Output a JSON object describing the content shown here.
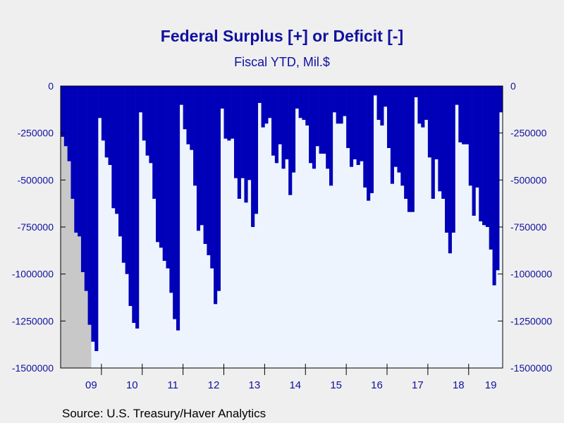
{
  "chart_data": {
    "type": "bar",
    "title": "Federal Surplus [+] or Deficit [-]",
    "subtitle": "Fiscal YTD, Mil.$",
    "source": "Source:  U.S. Treasury/Haver Analytics",
    "frequency": "monthly",
    "x_start": "2008-10",
    "x_tick_labels": [
      "09",
      "10",
      "11",
      "12",
      "13",
      "14",
      "15",
      "16",
      "17",
      "18",
      "19"
    ],
    "y_tick_labels": [
      "0",
      "-250000",
      "-500000",
      "-750000",
      "-1000000",
      "-1250000",
      "-1500000"
    ],
    "ylim": [
      -1500000,
      0
    ],
    "y_ticks": [
      0,
      -250000,
      -500000,
      -750000,
      -1000000,
      -1250000,
      -1500000
    ],
    "dual_y_axis": true,
    "recession_shading": {
      "start": "2008-10",
      "end": "2009-06"
    },
    "colors": {
      "bars": "#0000b8",
      "plot_background": "#eef4fd",
      "recession": "#c8c8c8",
      "page_background": "#efefef",
      "text": "#1010a0"
    },
    "values": [
      -270000,
      -320000,
      -400000,
      -600000,
      -780000,
      -800000,
      -990000,
      -1090000,
      -1270000,
      -1360000,
      -1410000,
      -170000,
      -290000,
      -380000,
      -420000,
      -650000,
      -680000,
      -800000,
      -940000,
      -1000000,
      -1170000,
      -1260000,
      -1290000,
      -140000,
      -290000,
      -370000,
      -410000,
      -600000,
      -830000,
      -860000,
      -930000,
      -970000,
      -1100000,
      -1240000,
      -1300000,
      -100000,
      -230000,
      -310000,
      -340000,
      -530000,
      -770000,
      -740000,
      -840000,
      -900000,
      -970000,
      -1160000,
      -1090000,
      -120000,
      -280000,
      -290000,
      -280000,
      -490000,
      -600000,
      -490000,
      -620000,
      -500000,
      -750000,
      -680000,
      -90000,
      -220000,
      -200000,
      -170000,
      -370000,
      -410000,
      -310000,
      -440000,
      -390000,
      -580000,
      -460000,
      -120000,
      -170000,
      -180000,
      -210000,
      -410000,
      -440000,
      -320000,
      -360000,
      -360000,
      -440000,
      -530000,
      -140000,
      -200000,
      -200000,
      -160000,
      -330000,
      -430000,
      -390000,
      -420000,
      -400000,
      -540000,
      -610000,
      -570000,
      -50000,
      -180000,
      -210000,
      -110000,
      -330000,
      -520000,
      -430000,
      -460000,
      -530000,
      -600000,
      -670000,
      -670000,
      -60000,
      -200000,
      -220000,
      -180000,
      -380000,
      -600000,
      -390000,
      -560000,
      -600000,
      -780000,
      -890000,
      -780000,
      -100000,
      -300000,
      -310000,
      -310000,
      -530000,
      -690000,
      -540000,
      -720000,
      -740000,
      -750000,
      -870000,
      -1060000,
      -980000,
      -140000
    ]
  }
}
